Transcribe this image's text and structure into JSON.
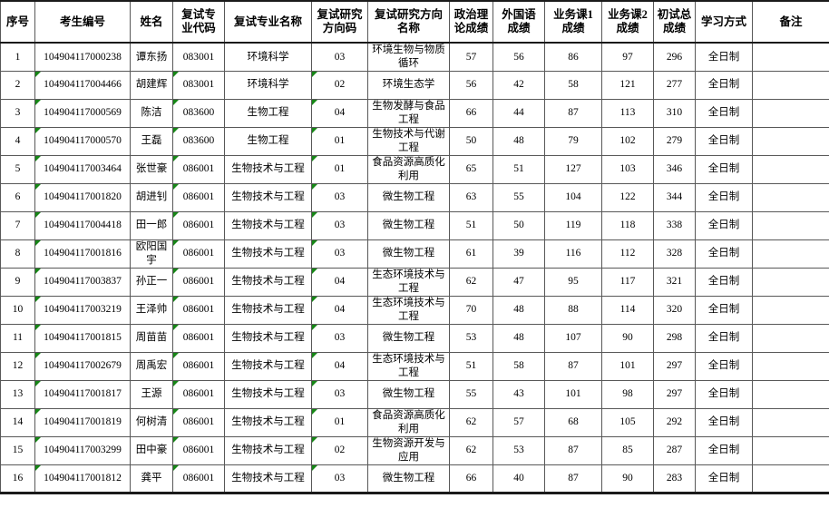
{
  "colors": {
    "green_marker": "#178717",
    "grid_line": "#585858",
    "heavy_line": "#1a1a1a",
    "text": "#000000"
  },
  "table": {
    "green_triangle": {
      "columns": [
        "candidate_no",
        "major_code",
        "direction_code"
      ],
      "rows_with_marker_start_index": 1
    },
    "columns": [
      {
        "key": "seq",
        "label": "序号"
      },
      {
        "key": "candidate_no",
        "label": "考生编号"
      },
      {
        "key": "name",
        "label": "姓名"
      },
      {
        "key": "major_code",
        "label": "复试专\n业代码"
      },
      {
        "key": "major_name",
        "label": "复试专业名称"
      },
      {
        "key": "direction_code",
        "label": "复试研究\n方向码"
      },
      {
        "key": "direction_name",
        "label": "复试研究方向\n名称"
      },
      {
        "key": "politics",
        "label": "政治理\n论成绩"
      },
      {
        "key": "foreign",
        "label": "外国语\n成绩"
      },
      {
        "key": "course1",
        "label": "业务课1\n成绩"
      },
      {
        "key": "course2",
        "label": "业务课2\n成绩"
      },
      {
        "key": "total",
        "label": "初试总\n成绩"
      },
      {
        "key": "study_mode",
        "label": "学习方式"
      },
      {
        "key": "remark",
        "label": "备注"
      }
    ],
    "rows": [
      {
        "seq": "1",
        "candidate_no": "104904117000238",
        "name": "谭东扬",
        "major_code": "083001",
        "major_name": "环境科学",
        "direction_code": "03",
        "direction_name": "环境生物与物质循环",
        "politics": "57",
        "foreign": "56",
        "course1": "86",
        "course2": "97",
        "total": "296",
        "study_mode": "全日制",
        "remark": ""
      },
      {
        "seq": "2",
        "candidate_no": "104904117004466",
        "name": "胡建辉",
        "major_code": "083001",
        "major_name": "环境科学",
        "direction_code": "02",
        "direction_name": "环境生态学",
        "politics": "56",
        "foreign": "42",
        "course1": "58",
        "course2": "121",
        "total": "277",
        "study_mode": "全日制",
        "remark": ""
      },
      {
        "seq": "3",
        "candidate_no": "104904117000569",
        "name": "陈洁",
        "major_code": "083600",
        "major_name": "生物工程",
        "direction_code": "04",
        "direction_name": "生物发酵与食品工程",
        "politics": "66",
        "foreign": "44",
        "course1": "87",
        "course2": "113",
        "total": "310",
        "study_mode": "全日制",
        "remark": ""
      },
      {
        "seq": "4",
        "candidate_no": "104904117000570",
        "name": "王磊",
        "major_code": "083600",
        "major_name": "生物工程",
        "direction_code": "01",
        "direction_name": "生物技术与代谢工程",
        "politics": "50",
        "foreign": "48",
        "course1": "79",
        "course2": "102",
        "total": "279",
        "study_mode": "全日制",
        "remark": ""
      },
      {
        "seq": "5",
        "candidate_no": "104904117003464",
        "name": "张世豪",
        "major_code": "086001",
        "major_name": "生物技术与工程",
        "direction_code": "01",
        "direction_name": "食品资源高质化利用",
        "politics": "65",
        "foreign": "51",
        "course1": "127",
        "course2": "103",
        "total": "346",
        "study_mode": "全日制",
        "remark": ""
      },
      {
        "seq": "6",
        "candidate_no": "104904117001820",
        "name": "胡进钊",
        "major_code": "086001",
        "major_name": "生物技术与工程",
        "direction_code": "03",
        "direction_name": "微生物工程",
        "politics": "63",
        "foreign": "55",
        "course1": "104",
        "course2": "122",
        "total": "344",
        "study_mode": "全日制",
        "remark": ""
      },
      {
        "seq": "7",
        "candidate_no": "104904117004418",
        "name": "田一郎",
        "major_code": "086001",
        "major_name": "生物技术与工程",
        "direction_code": "03",
        "direction_name": "微生物工程",
        "politics": "51",
        "foreign": "50",
        "course1": "119",
        "course2": "118",
        "total": "338",
        "study_mode": "全日制",
        "remark": ""
      },
      {
        "seq": "8",
        "candidate_no": "104904117001816",
        "name": "欧阳国宇",
        "major_code": "086001",
        "major_name": "生物技术与工程",
        "direction_code": "03",
        "direction_name": "微生物工程",
        "politics": "61",
        "foreign": "39",
        "course1": "116",
        "course2": "112",
        "total": "328",
        "study_mode": "全日制",
        "remark": ""
      },
      {
        "seq": "9",
        "candidate_no": "104904117003837",
        "name": "孙正一",
        "major_code": "086001",
        "major_name": "生物技术与工程",
        "direction_code": "04",
        "direction_name": "生态环境技术与工程",
        "politics": "62",
        "foreign": "47",
        "course1": "95",
        "course2": "117",
        "total": "321",
        "study_mode": "全日制",
        "remark": ""
      },
      {
        "seq": "10",
        "candidate_no": "104904117003219",
        "name": "王泽帅",
        "major_code": "086001",
        "major_name": "生物技术与工程",
        "direction_code": "04",
        "direction_name": "生态环境技术与工程",
        "politics": "70",
        "foreign": "48",
        "course1": "88",
        "course2": "114",
        "total": "320",
        "study_mode": "全日制",
        "remark": ""
      },
      {
        "seq": "11",
        "candidate_no": "104904117001815",
        "name": "周苗苗",
        "major_code": "086001",
        "major_name": "生物技术与工程",
        "direction_code": "03",
        "direction_name": "微生物工程",
        "politics": "53",
        "foreign": "48",
        "course1": "107",
        "course2": "90",
        "total": "298",
        "study_mode": "全日制",
        "remark": ""
      },
      {
        "seq": "12",
        "candidate_no": "104904117002679",
        "name": "周禹宏",
        "major_code": "086001",
        "major_name": "生物技术与工程",
        "direction_code": "04",
        "direction_name": "生态环境技术与工程",
        "politics": "51",
        "foreign": "58",
        "course1": "87",
        "course2": "101",
        "total": "297",
        "study_mode": "全日制",
        "remark": ""
      },
      {
        "seq": "13",
        "candidate_no": "104904117001817",
        "name": "王源",
        "major_code": "086001",
        "major_name": "生物技术与工程",
        "direction_code": "03",
        "direction_name": "微生物工程",
        "politics": "55",
        "foreign": "43",
        "course1": "101",
        "course2": "98",
        "total": "297",
        "study_mode": "全日制",
        "remark": ""
      },
      {
        "seq": "14",
        "candidate_no": "104904117001819",
        "name": "何树清",
        "major_code": "086001",
        "major_name": "生物技术与工程",
        "direction_code": "01",
        "direction_name": "食品资源高质化利用",
        "politics": "62",
        "foreign": "57",
        "course1": "68",
        "course2": "105",
        "total": "292",
        "study_mode": "全日制",
        "remark": ""
      },
      {
        "seq": "15",
        "candidate_no": "104904117003299",
        "name": "田中豪",
        "major_code": "086001",
        "major_name": "生物技术与工程",
        "direction_code": "02",
        "direction_name": "生物资源开发与应用",
        "politics": "62",
        "foreign": "53",
        "course1": "87",
        "course2": "85",
        "total": "287",
        "study_mode": "全日制",
        "remark": ""
      },
      {
        "seq": "16",
        "candidate_no": "104904117001812",
        "name": "龚平",
        "major_code": "086001",
        "major_name": "生物技术与工程",
        "direction_code": "03",
        "direction_name": "微生物工程",
        "politics": "66",
        "foreign": "40",
        "course1": "87",
        "course2": "90",
        "total": "283",
        "study_mode": "全日制",
        "remark": ""
      }
    ]
  }
}
